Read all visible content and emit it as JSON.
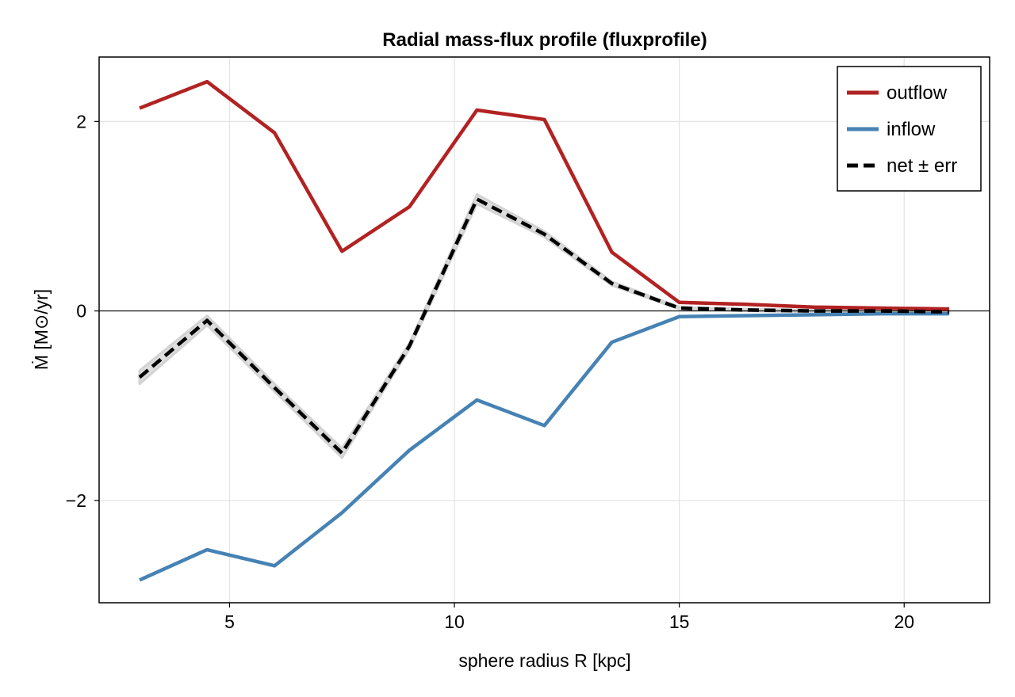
{
  "chart_data": {
    "type": "line",
    "title": "Radial mass-flux profile (fluxprofile)",
    "xlabel": "sphere radius R [kpc]",
    "ylabel": "Ṁ [M⊙/yr]",
    "xlim": [
      2.1,
      21.9
    ],
    "ylim": [
      -3.08,
      2.68
    ],
    "xticks": [
      5,
      10,
      15,
      20
    ],
    "yticks": [
      -2,
      0,
      2
    ],
    "ytick_labels": [
      "−2",
      "0",
      "2"
    ],
    "grid": true,
    "zero_line": true,
    "legend_position": "top-right",
    "x": [
      3.0,
      4.5,
      6.0,
      7.5,
      9.0,
      10.5,
      12.0,
      13.5,
      15.0,
      16.5,
      18.0,
      19.5,
      21.0
    ],
    "series": [
      {
        "name": "outflow",
        "color": "#b22222",
        "style": "solid",
        "values": [
          2.14,
          2.42,
          1.88,
          0.63,
          1.1,
          2.12,
          2.02,
          0.62,
          0.09,
          0.07,
          0.04,
          0.03,
          0.02
        ]
      },
      {
        "name": "inflow",
        "color": "#4682b4",
        "style": "solid",
        "values": [
          -2.84,
          -2.52,
          -2.69,
          -2.13,
          -1.47,
          -0.94,
          -1.21,
          -0.33,
          -0.06,
          -0.05,
          -0.04,
          -0.03,
          -0.03
        ]
      },
      {
        "name": "net ± err",
        "color": "#000000",
        "style": "dashed",
        "band_color": "#d3d3d3",
        "values": [
          -0.7,
          -0.1,
          -0.81,
          -1.5,
          -0.37,
          1.18,
          0.81,
          0.29,
          0.03,
          0.01,
          0.0,
          0.0,
          -0.01
        ],
        "err": [
          0.07,
          0.05,
          0.04,
          0.05,
          0.03,
          0.05,
          0.03,
          0.02,
          0.01,
          0.01,
          0.01,
          0.01,
          0.01
        ]
      }
    ]
  }
}
